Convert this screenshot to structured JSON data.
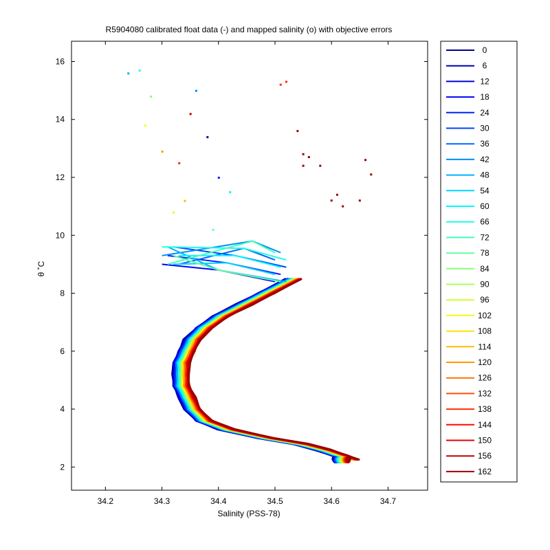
{
  "chart_data": {
    "type": "line",
    "title": "R5904080 calibrated float data (-) and mapped salinity (o) with objective errors",
    "xlabel": "Salinity (PSS-78)",
    "ylabel": "θ ˚C",
    "xlim": [
      34.14,
      34.77
    ],
    "ylim": [
      1.2,
      16.7
    ],
    "x_ticks": [
      34.2,
      34.3,
      34.4,
      34.5,
      34.6,
      34.7
    ],
    "x_tick_labels": [
      "34.2",
      "34.3",
      "34.4",
      "34.5",
      "34.6",
      "34.7"
    ],
    "y_ticks": [
      2,
      4,
      6,
      8,
      10,
      12,
      14,
      16
    ],
    "y_tick_labels": [
      "2",
      "4",
      "6",
      "8",
      "10",
      "12",
      "14",
      "16"
    ],
    "grid": false,
    "legend_position": "right-outside",
    "legend_entries": [
      "0",
      "6",
      "12",
      "18",
      "24",
      "30",
      "36",
      "42",
      "48",
      "54",
      "60",
      "66",
      "72",
      "78",
      "84",
      "90",
      "96",
      "102",
      "108",
      "114",
      "120",
      "126",
      "132",
      "138",
      "144",
      "150",
      "156",
      "162"
    ],
    "legend_colors": [
      "#00008f",
      "#0000b3",
      "#0000d9",
      "#0000ff",
      "#0020ff",
      "#0044ff",
      "#0068ff",
      "#008cff",
      "#00b0ff",
      "#00d4ff",
      "#00f8ff",
      "#1cffe3",
      "#40ffbf",
      "#64ff9b",
      "#88ff77",
      "#acff53",
      "#d0ff2f",
      "#f4ff0b",
      "#ffe000",
      "#ffbc00",
      "#ff9800",
      "#ff7400",
      "#ff5000",
      "#ff2c00",
      "#ff0800",
      "#e30000",
      "#bf0000",
      "#9b0000"
    ],
    "main_curve": {
      "x": [
        34.62,
        34.6,
        34.57,
        34.53,
        34.47,
        34.4,
        34.36,
        34.34,
        34.33,
        34.32,
        34.32,
        34.32,
        34.33,
        34.34,
        34.36,
        34.39,
        34.43,
        34.47,
        34.52
      ],
      "y": [
        2.25,
        2.4,
        2.6,
        2.8,
        3.0,
        3.3,
        3.6,
        4.0,
        4.4,
        4.8,
        5.2,
        5.6,
        6.0,
        6.4,
        6.8,
        7.2,
        7.6,
        8.0,
        8.5
      ]
    },
    "warm_points": {
      "x": [
        34.52,
        34.51,
        34.54,
        34.55,
        34.56,
        34.58,
        34.61,
        34.62,
        34.65,
        34.66,
        34.67,
        34.6,
        34.55
      ],
      "y": [
        15.3,
        15.2,
        13.6,
        12.8,
        12.7,
        12.4,
        11.4,
        11.0,
        11.2,
        12.6,
        12.1,
        11.2,
        12.4
      ]
    },
    "scatter_points": {
      "x": [
        34.24,
        34.26,
        34.28,
        34.27,
        34.3,
        34.33,
        34.35,
        34.38,
        34.4,
        34.36,
        34.42,
        34.39,
        34.32,
        34.34
      ],
      "y": [
        15.6,
        15.7,
        14.8,
        13.8,
        12.9,
        12.5,
        14.2,
        13.4,
        12.0,
        15.0,
        11.5,
        10.2,
        10.8,
        11.2
      ]
    }
  }
}
